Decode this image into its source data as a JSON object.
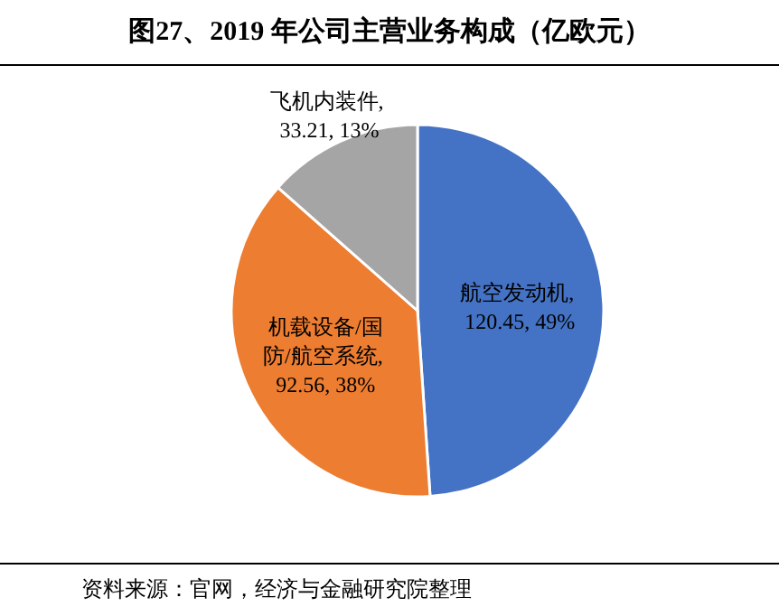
{
  "chart_data": {
    "type": "pie",
    "title": "图27、2019 年公司主营业务构成（亿欧元）",
    "categories": [
      "航空发动机",
      "机载设备/国防/航空系统",
      "飞机内装件"
    ],
    "values": [
      120.45,
      92.56,
      33.21
    ],
    "value_labels": [
      ", 120.45, 49%",
      ", 92.56, 38%",
      ", 33.21, 13%"
    ],
    "colors": [
      "#4472c4",
      "#ed7d31",
      "#a5a5a5"
    ],
    "annotations": [
      "资料来源：官网，经济与金融研究院整理"
    ]
  }
}
